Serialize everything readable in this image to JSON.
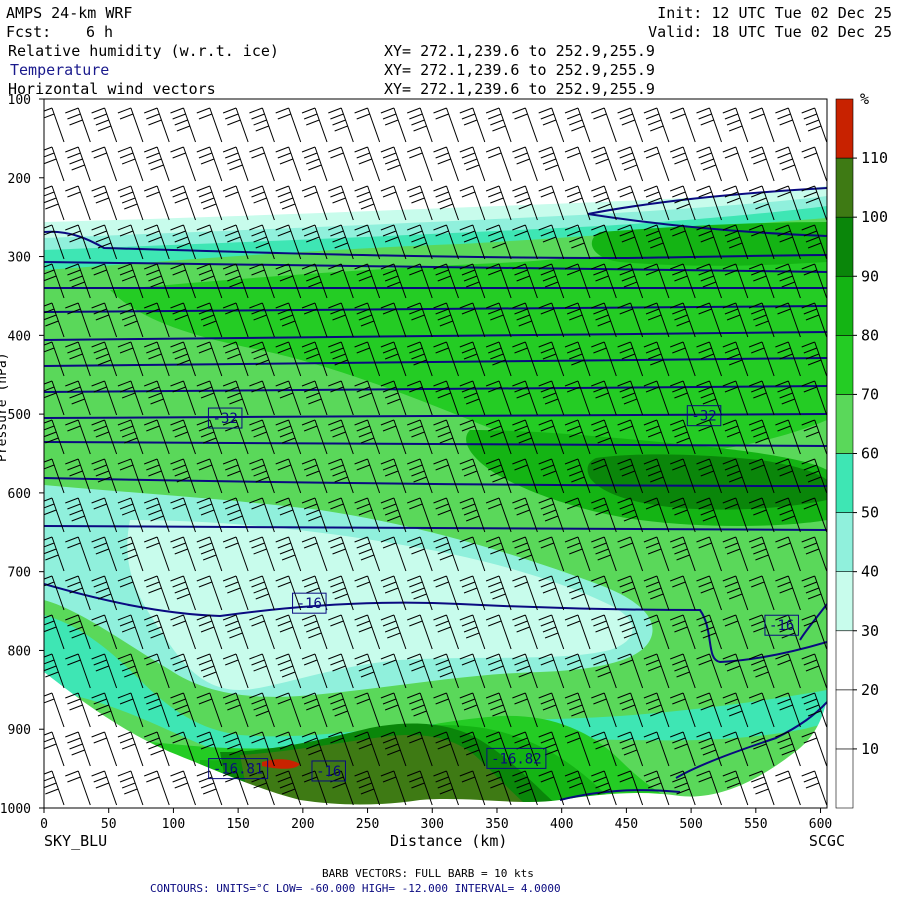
{
  "header": {
    "model": "AMPS 24-km WRF",
    "fcst_label": "Fcst:",
    "fcst_value": "6 h",
    "init": "Init: 12 UTC Tue 02 Dec 25",
    "valid": "Valid: 18 UTC Tue 02 Dec 25",
    "fields": [
      {
        "name": "Relative humidity (w.r.t. ice)",
        "xy": "XY= 272.1,239.6 to 252.9,255.9",
        "color": "#000000"
      },
      {
        "name": "Temperature",
        "xy": "XY= 272.1,239.6 to 252.9,255.9",
        "color": "#1a1a8c"
      },
      {
        "name": "Horizontal wind vectors",
        "xy": "XY= 272.1,239.6 to 252.9,255.9",
        "color": "#000000"
      }
    ]
  },
  "footer": {
    "barb": "BARB VECTORS:  FULL BARB = 10 kts",
    "contours": "CONTOURS:  UNITS=°C  LOW= -60.000      HIGH= -12.000      INTERVAL=   4.0000"
  },
  "chart_data": {
    "type": "cross-section",
    "xlabel": "Distance (km)",
    "ylabel": "Pressure (hPa)",
    "xlim": [
      0,
      605
    ],
    "ylim": [
      1000,
      100
    ],
    "x_ticks": [
      0,
      50,
      100,
      150,
      200,
      250,
      300,
      350,
      400,
      450,
      500,
      550,
      600
    ],
    "y_ticks": [
      100,
      200,
      300,
      400,
      500,
      600,
      700,
      800,
      900,
      1000
    ],
    "left_endpoint": "SKY_BLU",
    "right_endpoint": "SCGC",
    "colorbar": {
      "unit": "%",
      "levels": [
        10,
        20,
        30,
        40,
        50,
        60,
        70,
        80,
        90,
        100,
        110
      ],
      "colors": [
        "#ffffff",
        "#ffffff",
        "#ffffff",
        "#c8fcec",
        "#90f0dc",
        "#3ee6b4",
        "#5ad85a",
        "#24cc24",
        "#14b414",
        "#0a860a",
        "#3e7a14",
        "#c82200"
      ]
    },
    "temperature_contours": [
      {
        "label": "-32",
        "x": 140,
        "p": 505
      },
      {
        "label": "-32",
        "x": 510,
        "p": 502
      },
      {
        "label": "-16",
        "x": 205,
        "p": 740
      },
      {
        "label": "-16",
        "x": 570,
        "p": 768
      },
      {
        "label": "-16",
        "x": 220,
        "p": 953
      },
      {
        "label": "-16.82",
        "x": 365,
        "p": 937
      },
      {
        "label": "-16.81",
        "x": 150,
        "p": 950
      }
    ],
    "grid": false
  }
}
